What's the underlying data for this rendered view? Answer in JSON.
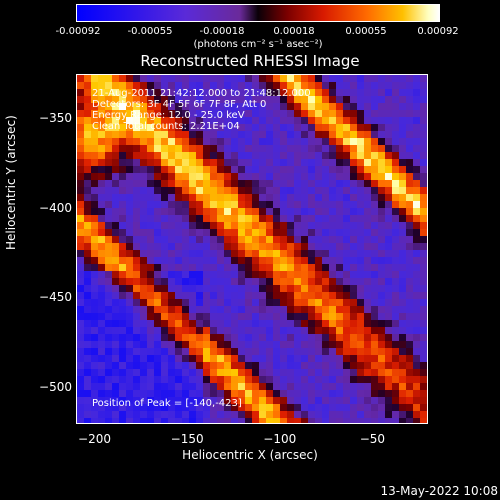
{
  "colorbar": {
    "ticks": [
      "-0.00092",
      "-0.00055",
      "-0.00018",
      "0.00018",
      "0.00055",
      "0.00092"
    ],
    "unit": "(photons cm⁻² s⁻¹ asec⁻²)"
  },
  "chart_data": {
    "type": "heatmap",
    "title": "Reconstructed RHESSI Image",
    "xlabel": "Heliocentric X (arcsec)",
    "ylabel": "Heliocentric Y (arcsec)",
    "xlim": [
      -210,
      -20
    ],
    "ylim": [
      -520,
      -325
    ],
    "xticks": [
      -200,
      -150,
      -100,
      -50
    ],
    "yticks": [
      -350,
      -400,
      -450,
      -500
    ],
    "colorbar_range": [
      -0.00092,
      0.00092
    ],
    "annotations": [
      "21-Aug-2011 21:42:12.000 to 21:48:12.000",
      "Detectors: 3F 4F 5F 6F 7F 8F, Att 0",
      "Energy Range: 12.0 - 25.0 keV",
      "Clean     Total counts: 2.21E+04"
    ],
    "peak_label": "Position of Peak = [-140,-423]",
    "peak": [
      -140,
      -423
    ]
  },
  "footer": "13-May-2022 10:08"
}
